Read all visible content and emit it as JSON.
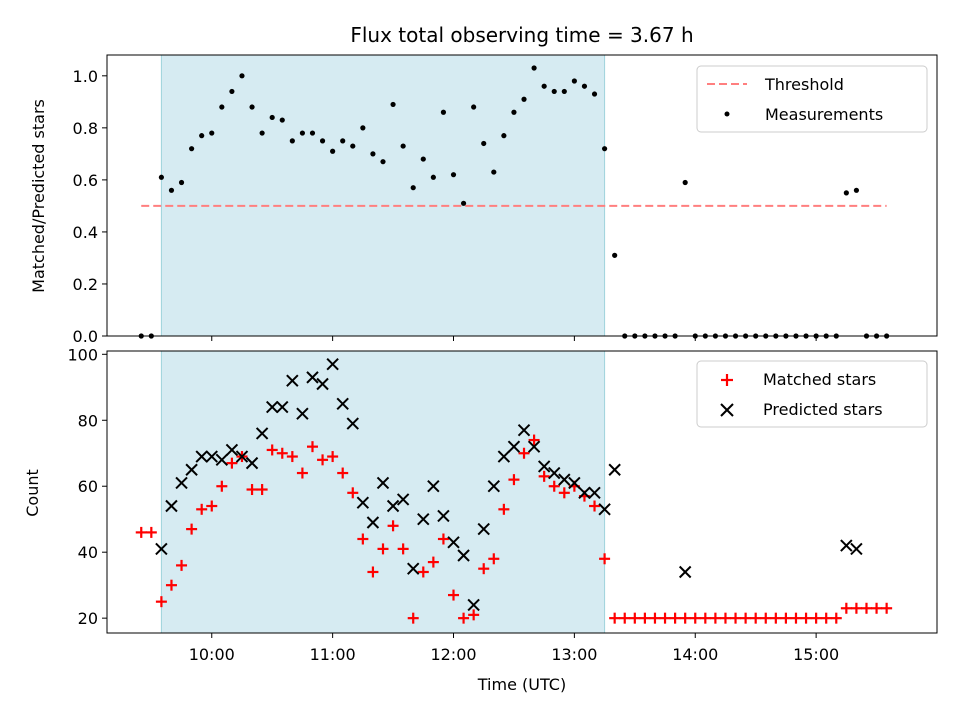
{
  "chart_data": [
    {
      "type": "scatter",
      "title": "Flux total observing time = 3.67 h",
      "xlabel": "",
      "ylabel": "Matched/Predicted stars",
      "xlim": [
        "09:08",
        "16:00"
      ],
      "ylim": [
        0,
        1.08
      ],
      "yticks": [
        0.0,
        0.2,
        0.4,
        0.6,
        0.8,
        1.0
      ],
      "ytick_labels": [
        "0.0",
        "0.2",
        "0.4",
        "0.6",
        "0.8",
        "1.0"
      ],
      "shaded_span": [
        "09:35",
        "13:15"
      ],
      "shade_color": "#add8e6",
      "threshold": {
        "name": "Threshold",
        "value": 0.5,
        "x_range": [
          "09:25",
          "15:35"
        ],
        "color": "#ff7f7f",
        "style": "dashed"
      },
      "series": [
        {
          "name": "Measurements",
          "marker": "dot",
          "color": "#000000",
          "points": [
            [
              "09:25",
              0.0
            ],
            [
              "09:30",
              0.0
            ],
            [
              "09:35",
              0.61
            ],
            [
              "09:40",
              0.56
            ],
            [
              "09:45",
              0.59
            ],
            [
              "09:50",
              0.72
            ],
            [
              "09:55",
              0.77
            ],
            [
              "10:00",
              0.78
            ],
            [
              "10:05",
              0.88
            ],
            [
              "10:10",
              0.94
            ],
            [
              "10:15",
              1.0
            ],
            [
              "10:20",
              0.88
            ],
            [
              "10:25",
              0.78
            ],
            [
              "10:30",
              0.84
            ],
            [
              "10:35",
              0.83
            ],
            [
              "10:40",
              0.75
            ],
            [
              "10:45",
              0.78
            ],
            [
              "10:50",
              0.78
            ],
            [
              "10:55",
              0.75
            ],
            [
              "11:00",
              0.71
            ],
            [
              "11:05",
              0.75
            ],
            [
              "11:10",
              0.73
            ],
            [
              "11:15",
              0.8
            ],
            [
              "11:20",
              0.7
            ],
            [
              "11:25",
              0.67
            ],
            [
              "11:30",
              0.89
            ],
            [
              "11:35",
              0.73
            ],
            [
              "11:40",
              0.57
            ],
            [
              "11:45",
              0.68
            ],
            [
              "11:50",
              0.61
            ],
            [
              "11:55",
              0.86
            ],
            [
              "12:00",
              0.62
            ],
            [
              "12:05",
              0.51
            ],
            [
              "12:10",
              0.88
            ],
            [
              "12:15",
              0.74
            ],
            [
              "12:20",
              0.63
            ],
            [
              "12:25",
              0.77
            ],
            [
              "12:30",
              0.86
            ],
            [
              "12:35",
              0.91
            ],
            [
              "12:40",
              1.03
            ],
            [
              "12:45",
              0.96
            ],
            [
              "12:50",
              0.94
            ],
            [
              "12:55",
              0.94
            ],
            [
              "13:00",
              0.98
            ],
            [
              "13:05",
              0.96
            ],
            [
              "13:10",
              0.93
            ],
            [
              "13:15",
              0.72
            ],
            [
              "13:20",
              0.31
            ],
            [
              "13:25",
              0.0
            ],
            [
              "13:30",
              0.0
            ],
            [
              "13:35",
              0.0
            ],
            [
              "13:40",
              0.0
            ],
            [
              "13:45",
              0.0
            ],
            [
              "13:50",
              0.0
            ],
            [
              "13:55",
              0.59
            ],
            [
              "14:00",
              0.0
            ],
            [
              "14:05",
              0.0
            ],
            [
              "14:10",
              0.0
            ],
            [
              "14:15",
              0.0
            ],
            [
              "14:20",
              0.0
            ],
            [
              "14:25",
              0.0
            ],
            [
              "14:30",
              0.0
            ],
            [
              "14:35",
              0.0
            ],
            [
              "14:40",
              0.0
            ],
            [
              "14:45",
              0.0
            ],
            [
              "14:50",
              0.0
            ],
            [
              "14:55",
              0.0
            ],
            [
              "15:00",
              0.0
            ],
            [
              "15:05",
              0.0
            ],
            [
              "15:10",
              0.0
            ],
            [
              "15:15",
              0.55
            ],
            [
              "15:20",
              0.56
            ],
            [
              "15:25",
              0.0
            ],
            [
              "15:30",
              0.0
            ],
            [
              "15:35",
              0.0
            ]
          ]
        }
      ],
      "legend": "top-right"
    },
    {
      "type": "scatter",
      "title": "",
      "xlabel": "Time (UTC)",
      "ylabel": "Count",
      "xlim": [
        "09:08",
        "16:00"
      ],
      "xticks": [
        "10:00",
        "11:00",
        "12:00",
        "13:00",
        "14:00",
        "15:00"
      ],
      "ylim": [
        15.5,
        101
      ],
      "yticks": [
        20,
        40,
        60,
        80,
        100
      ],
      "ytick_labels": [
        "20",
        "40",
        "60",
        "80",
        "100"
      ],
      "shaded_span": [
        "09:35",
        "13:15"
      ],
      "shade_color": "#add8e6",
      "series": [
        {
          "name": "Matched stars",
          "marker": "plus",
          "color": "#ff0000",
          "points": [
            [
              "09:25",
              46
            ],
            [
              "09:30",
              46
            ],
            [
              "09:35",
              25
            ],
            [
              "09:40",
              30
            ],
            [
              "09:45",
              36
            ],
            [
              "09:50",
              47
            ],
            [
              "09:55",
              53
            ],
            [
              "10:00",
              54
            ],
            [
              "10:05",
              60
            ],
            [
              "10:10",
              67
            ],
            [
              "10:15",
              69
            ],
            [
              "10:20",
              59
            ],
            [
              "10:25",
              59
            ],
            [
              "10:30",
              71
            ],
            [
              "10:35",
              70
            ],
            [
              "10:40",
              69
            ],
            [
              "10:45",
              64
            ],
            [
              "10:50",
              72
            ],
            [
              "10:55",
              68
            ],
            [
              "11:00",
              69
            ],
            [
              "11:05",
              64
            ],
            [
              "11:10",
              58
            ],
            [
              "11:15",
              44
            ],
            [
              "11:20",
              34
            ],
            [
              "11:25",
              41
            ],
            [
              "11:30",
              48
            ],
            [
              "11:35",
              41
            ],
            [
              "11:40",
              20
            ],
            [
              "11:45",
              34
            ],
            [
              "11:50",
              37
            ],
            [
              "11:55",
              44
            ],
            [
              "12:00",
              27
            ],
            [
              "12:05",
              20
            ],
            [
              "12:10",
              21
            ],
            [
              "12:15",
              35
            ],
            [
              "12:20",
              38
            ],
            [
              "12:25",
              53
            ],
            [
              "12:30",
              62
            ],
            [
              "12:35",
              70
            ],
            [
              "12:40",
              74
            ],
            [
              "12:45",
              63
            ],
            [
              "12:50",
              60
            ],
            [
              "12:55",
              58
            ],
            [
              "13:00",
              60
            ],
            [
              "13:05",
              57
            ],
            [
              "13:10",
              54
            ],
            [
              "13:15",
              38
            ],
            [
              "13:20",
              20
            ],
            [
              "13:25",
              20
            ],
            [
              "13:30",
              20
            ],
            [
              "13:35",
              20
            ],
            [
              "13:40",
              20
            ],
            [
              "13:45",
              20
            ],
            [
              "13:50",
              20
            ],
            [
              "13:55",
              20
            ],
            [
              "14:00",
              20
            ],
            [
              "14:05",
              20
            ],
            [
              "14:10",
              20
            ],
            [
              "14:15",
              20
            ],
            [
              "14:20",
              20
            ],
            [
              "14:25",
              20
            ],
            [
              "14:30",
              20
            ],
            [
              "14:35",
              20
            ],
            [
              "14:40",
              20
            ],
            [
              "14:45",
              20
            ],
            [
              "14:50",
              20
            ],
            [
              "14:55",
              20
            ],
            [
              "15:00",
              20
            ],
            [
              "15:05",
              20
            ],
            [
              "15:10",
              20
            ],
            [
              "15:15",
              23
            ],
            [
              "15:20",
              23
            ],
            [
              "15:25",
              23
            ],
            [
              "15:30",
              23
            ],
            [
              "15:35",
              23
            ]
          ]
        },
        {
          "name": "Predicted stars",
          "marker": "x",
          "color": "#000000",
          "points": [
            [
              "09:35",
              41
            ],
            [
              "09:40",
              54
            ],
            [
              "09:45",
              61
            ],
            [
              "09:50",
              65
            ],
            [
              "09:55",
              69
            ],
            [
              "10:00",
              69
            ],
            [
              "10:05",
              68
            ],
            [
              "10:10",
              71
            ],
            [
              "10:15",
              69
            ],
            [
              "10:20",
              67
            ],
            [
              "10:25",
              76
            ],
            [
              "10:30",
              84
            ],
            [
              "10:35",
              84
            ],
            [
              "10:40",
              92
            ],
            [
              "10:45",
              82
            ],
            [
              "10:50",
              93
            ],
            [
              "10:55",
              91
            ],
            [
              "11:00",
              97
            ],
            [
              "11:05",
              85
            ],
            [
              "11:10",
              79
            ],
            [
              "11:15",
              55
            ],
            [
              "11:20",
              49
            ],
            [
              "11:25",
              61
            ],
            [
              "11:30",
              54
            ],
            [
              "11:35",
              56
            ],
            [
              "11:40",
              35
            ],
            [
              "11:45",
              50
            ],
            [
              "11:50",
              60
            ],
            [
              "11:55",
              51
            ],
            [
              "12:00",
              43
            ],
            [
              "12:05",
              39
            ],
            [
              "12:10",
              24
            ],
            [
              "12:15",
              47
            ],
            [
              "12:20",
              60
            ],
            [
              "12:25",
              69
            ],
            [
              "12:30",
              72
            ],
            [
              "12:35",
              77
            ],
            [
              "12:40",
              72
            ],
            [
              "12:45",
              66
            ],
            [
              "12:50",
              64
            ],
            [
              "12:55",
              62
            ],
            [
              "13:00",
              61
            ],
            [
              "13:05",
              58
            ],
            [
              "13:10",
              58
            ],
            [
              "13:15",
              53
            ],
            [
              "13:20",
              65
            ],
            [
              "13:55",
              34
            ],
            [
              "15:15",
              42
            ],
            [
              "15:20",
              41
            ]
          ]
        }
      ],
      "legend": "top-right"
    }
  ]
}
